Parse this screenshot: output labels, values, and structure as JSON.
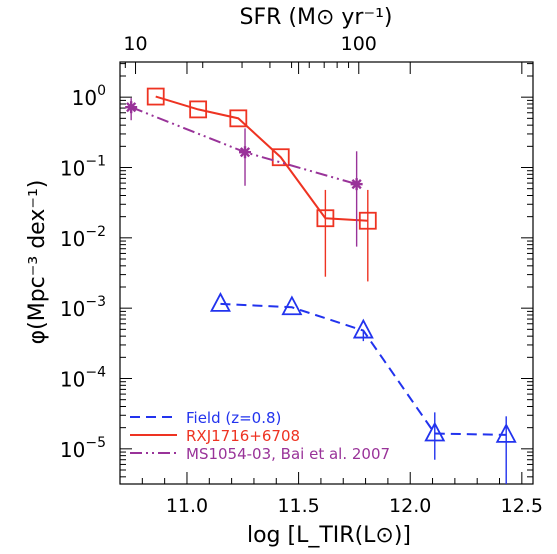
{
  "chart_data": {
    "type": "line",
    "title": "",
    "xlabel": "log [L_TIR(L⊙)]",
    "ylabel": "φ(Mpc⁻³ dex⁻¹)",
    "top_axis_label": "SFR (M⊙ yr⁻¹)",
    "xlim": [
      10.7,
      12.55
    ],
    "ylim_log10": [
      -5.5,
      0.5
    ],
    "y_scale": "log",
    "grid": false,
    "legend_position": "bottom-left",
    "x_ticks": [
      {
        "value": 11.0,
        "label": "11.0"
      },
      {
        "value": 11.5,
        "label": "11.5"
      },
      {
        "value": 12.0,
        "label": "12.0"
      },
      {
        "value": 12.5,
        "label": "12.5"
      }
    ],
    "top_ticks": [
      {
        "sfr": 10,
        "label": "10"
      },
      {
        "sfr": 100,
        "label": "100"
      }
    ],
    "y_ticks": [
      {
        "exp": 0,
        "base": "10",
        "sup": "0"
      },
      {
        "exp": -1,
        "base": "10",
        "sup": "−1"
      },
      {
        "exp": -2,
        "base": "10",
        "sup": "−2"
      },
      {
        "exp": -3,
        "base": "10",
        "sup": "−3"
      },
      {
        "exp": -4,
        "base": "10",
        "sup": "−4"
      },
      {
        "exp": -5,
        "base": "10",
        "sup": "−5"
      }
    ],
    "series": [
      {
        "name": "Field (z=0.8)",
        "color": "#2233ee",
        "line_style": "dashed",
        "marker": "triangle",
        "points": [
          {
            "x": 11.15,
            "y": 0.00115,
            "ylo": 0.00115,
            "yhi": 0.00115
          },
          {
            "x": 11.47,
            "y": 0.00103,
            "ylo": 0.00103,
            "yhi": 0.00103
          },
          {
            "x": 11.79,
            "y": 0.00048,
            "ylo": 0.00034,
            "yhi": 0.00048
          },
          {
            "x": 12.11,
            "y": 1.65e-05,
            "ylo": 7e-06,
            "yhi": 3.3e-05
          },
          {
            "x": 12.43,
            "y": 1.58e-05,
            "ylo": 2.2e-06,
            "yhi": 2.9e-05
          }
        ]
      },
      {
        "name": "RXJ1716+6708",
        "color": "#ee3322",
        "line_style": "solid",
        "marker": "square",
        "points": [
          {
            "x": 10.86,
            "y": 1.02,
            "ylo": 1.02,
            "yhi": 1.02
          },
          {
            "x": 11.05,
            "y": 0.67,
            "ylo": 0.67,
            "yhi": 0.67
          },
          {
            "x": 11.23,
            "y": 0.5,
            "ylo": 0.5,
            "yhi": 0.5
          },
          {
            "x": 11.42,
            "y": 0.14,
            "ylo": 0.14,
            "yhi": 0.14
          },
          {
            "x": 11.62,
            "y": 0.019,
            "ylo": 0.0028,
            "yhi": 0.048
          },
          {
            "x": 11.81,
            "y": 0.0175,
            "ylo": 0.0024,
            "yhi": 0.048
          }
        ]
      },
      {
        "name": "MS1054-03, Bai et al. 2007",
        "color": "#993399",
        "line_style": "dash-dot-dot",
        "marker": "asterisk",
        "points": [
          {
            "x": 10.75,
            "y": 0.72,
            "ylo": 0.47,
            "yhi": 0.97
          },
          {
            "x": 11.26,
            "y": 0.165,
            "ylo": 0.055,
            "yhi": 0.36
          },
          {
            "x": 11.76,
            "y": 0.058,
            "ylo": 0.0075,
            "yhi": 0.17
          }
        ]
      }
    ]
  }
}
